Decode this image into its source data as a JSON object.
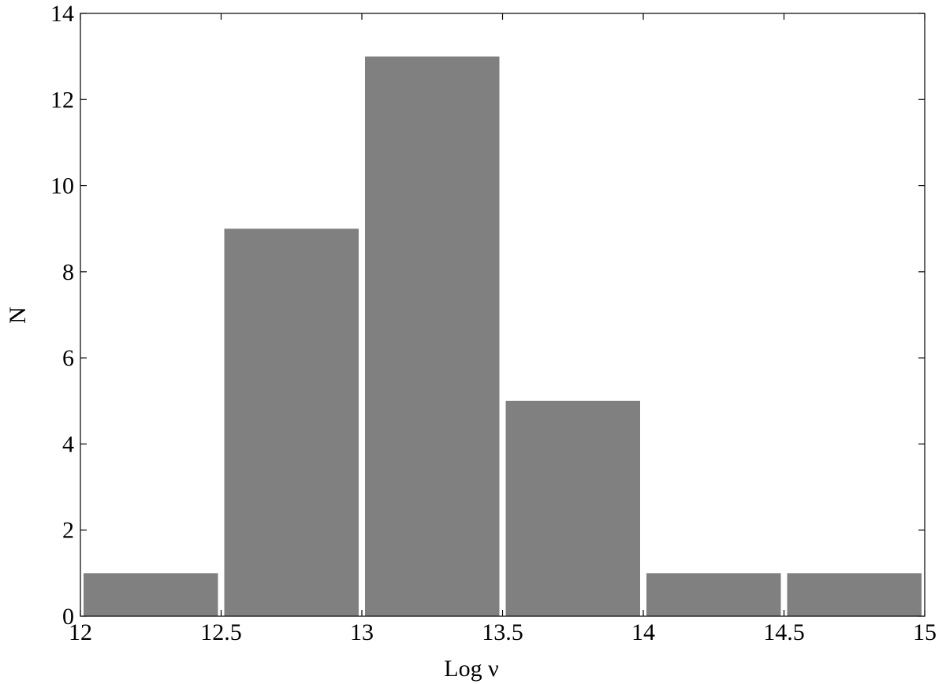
{
  "chart_data": {
    "type": "histogram",
    "xlabel": "Log ν",
    "ylabel": "N",
    "bins": [
      12,
      12.5,
      13,
      13.5,
      14,
      14.5,
      15
    ],
    "values": [
      1,
      9,
      13,
      5,
      1,
      1
    ],
    "color": "#808080",
    "xlim": [
      12,
      15
    ],
    "xticks": [
      12,
      12.5,
      13,
      13.5,
      14,
      14.5,
      15
    ],
    "ylim": [
      0,
      14
    ],
    "yticks": [
      0,
      2,
      4,
      6,
      8,
      10,
      12,
      14
    ]
  }
}
